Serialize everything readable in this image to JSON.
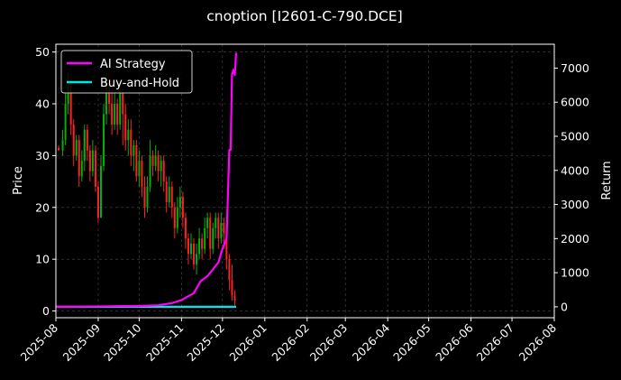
{
  "chart_data": {
    "type": "candlestick+line",
    "title": "cnoption [I2601-C-790.DCE]",
    "ylabel_left": "Price",
    "ylabel_right": "Return",
    "x_ticks": [
      "2025-08",
      "2025-09",
      "2025-10",
      "2025-11",
      "2025-12",
      "2026-01",
      "2026-02",
      "2026-03",
      "2026-04",
      "2026-05",
      "2026-06",
      "2026-07",
      "2026-08"
    ],
    "xlim": [
      "2025-08-01",
      "2026-08-01"
    ],
    "ylim_left": [
      -1.3,
      51.5
    ],
    "ylim_right": [
      -320,
      7700
    ],
    "y_ticks_left": [
      0,
      10,
      20,
      30,
      40,
      50
    ],
    "y_ticks_right": [
      0,
      1000,
      2000,
      3000,
      4000,
      5000,
      6000,
      7000
    ],
    "grid": true,
    "legend_placement": "top-left",
    "colors": {
      "up": "#00b300",
      "down": "#ff2020",
      "ai": "#ff00ff",
      "bh": "#00e5e5",
      "grid": "#4a4a4a",
      "background": "#000000"
    },
    "series": [
      {
        "name": "AI Strategy",
        "axis": "right",
        "points": [
          [
            "2025-08-01",
            0
          ],
          [
            "2025-08-20",
            5
          ],
          [
            "2025-09-10",
            15
          ],
          [
            "2025-10-01",
            25
          ],
          [
            "2025-10-15",
            45
          ],
          [
            "2025-10-25",
            110
          ],
          [
            "2025-11-01",
            200
          ],
          [
            "2025-11-10",
            400
          ],
          [
            "2025-11-15",
            750
          ],
          [
            "2025-11-20",
            900
          ],
          [
            "2025-11-25",
            1150
          ],
          [
            "2025-11-28",
            1300
          ],
          [
            "2025-12-01",
            1700
          ],
          [
            "2025-12-04",
            2000
          ],
          [
            "2025-12-06",
            4600
          ],
          [
            "2025-12-07",
            4600
          ],
          [
            "2025-12-08",
            6800
          ],
          [
            "2025-12-09",
            6950
          ],
          [
            "2025-12-10",
            6800
          ],
          [
            "2025-12-11",
            7450
          ]
        ]
      },
      {
        "name": "Buy-and-Hold",
        "axis": "right",
        "points": [
          [
            "2025-08-01",
            0
          ],
          [
            "2025-12-11",
            0
          ]
        ]
      }
    ],
    "candles": [
      [
        "2025-08-03",
        31.5,
        31,
        32,
        31
      ],
      [
        "2025-08-06",
        31,
        33,
        35,
        30
      ],
      [
        "2025-08-08",
        33,
        40,
        42,
        32
      ],
      [
        "2025-08-10",
        40,
        44,
        46,
        38
      ],
      [
        "2025-08-12",
        44,
        36,
        45,
        34
      ],
      [
        "2025-08-14",
        36,
        30,
        37,
        28
      ],
      [
        "2025-08-16",
        30,
        33,
        34,
        29
      ],
      [
        "2025-08-18",
        33,
        26,
        34,
        24
      ],
      [
        "2025-08-20",
        26,
        29,
        31,
        25
      ],
      [
        "2025-08-22",
        29,
        35,
        36,
        27
      ],
      [
        "2025-08-24",
        35,
        31,
        36,
        29
      ],
      [
        "2025-08-26",
        31,
        27,
        32,
        25
      ],
      [
        "2025-08-28",
        27,
        31,
        33,
        26
      ],
      [
        "2025-08-30",
        31,
        24,
        32,
        23
      ],
      [
        "2025-09-01",
        24,
        18,
        25,
        17
      ],
      [
        "2025-09-03",
        18,
        28,
        30,
        18
      ],
      [
        "2025-09-05",
        28,
        38,
        40,
        27
      ],
      [
        "2025-09-07",
        38,
        44,
        46,
        36
      ],
      [
        "2025-09-09",
        44,
        40,
        46,
        38
      ],
      [
        "2025-09-11",
        40,
        36,
        42,
        34
      ],
      [
        "2025-09-13",
        36,
        40,
        42,
        35
      ],
      [
        "2025-09-15",
        40,
        36,
        41,
        34
      ],
      [
        "2025-09-17",
        36,
        42,
        44,
        35
      ],
      [
        "2025-09-19",
        42,
        38,
        43,
        32
      ],
      [
        "2025-09-21",
        38,
        33,
        40,
        31
      ],
      [
        "2025-09-23",
        33,
        35,
        37,
        30
      ],
      [
        "2025-09-25",
        35,
        30,
        37,
        28
      ],
      [
        "2025-09-27",
        30,
        32,
        33,
        27
      ],
      [
        "2025-09-29",
        32,
        26,
        33,
        25
      ],
      [
        "2025-10-01",
        26,
        29,
        31,
        24
      ],
      [
        "2025-10-03",
        29,
        24,
        30,
        22
      ],
      [
        "2025-10-05",
        24,
        20,
        26,
        18
      ],
      [
        "2025-10-07",
        20,
        24,
        26,
        19
      ],
      [
        "2025-10-09",
        24,
        30,
        33,
        23
      ],
      [
        "2025-10-11",
        30,
        28,
        31,
        26
      ],
      [
        "2025-10-13",
        28,
        30,
        32,
        27
      ],
      [
        "2025-10-15",
        30,
        27,
        31,
        25
      ],
      [
        "2025-10-17",
        27,
        29,
        30,
        24
      ],
      [
        "2025-10-19",
        29,
        25,
        30,
        23
      ],
      [
        "2025-10-21",
        25,
        21,
        26,
        19
      ],
      [
        "2025-10-23",
        21,
        24,
        26,
        20
      ],
      [
        "2025-10-25",
        24,
        20,
        25,
        18
      ],
      [
        "2025-10-27",
        20,
        16,
        21,
        14
      ],
      [
        "2025-10-29",
        16,
        20,
        22,
        15
      ],
      [
        "2025-10-31",
        20,
        22,
        24,
        18
      ],
      [
        "2025-11-02",
        22,
        18,
        23,
        16
      ],
      [
        "2025-11-04",
        18,
        14,
        19,
        12
      ],
      [
        "2025-11-06",
        14,
        11,
        15,
        9
      ],
      [
        "2025-11-08",
        11,
        13,
        15,
        10
      ],
      [
        "2025-11-10",
        13,
        9,
        14,
        8
      ],
      [
        "2025-11-12",
        9,
        11,
        13,
        7
      ],
      [
        "2025-11-14",
        11,
        14,
        16,
        10
      ],
      [
        "2025-11-16",
        14,
        12,
        15,
        10
      ],
      [
        "2025-11-18",
        12,
        16,
        18,
        11
      ],
      [
        "2025-11-20",
        16,
        18,
        19,
        14
      ],
      [
        "2025-11-22",
        18,
        12,
        19,
        10
      ],
      [
        "2025-11-24",
        12,
        16,
        17,
        11
      ],
      [
        "2025-11-26",
        16,
        18,
        19,
        14
      ],
      [
        "2025-11-28",
        18,
        14,
        19,
        12
      ],
      [
        "2025-11-30",
        14,
        17,
        19,
        13
      ],
      [
        "2025-12-02",
        17,
        15,
        18,
        12
      ],
      [
        "2025-12-04",
        15,
        10,
        16,
        8
      ],
      [
        "2025-12-06",
        10,
        6,
        11,
        4
      ],
      [
        "2025-12-08",
        6,
        3,
        9,
        2
      ],
      [
        "2025-12-10",
        3,
        2,
        4,
        1
      ]
    ]
  }
}
